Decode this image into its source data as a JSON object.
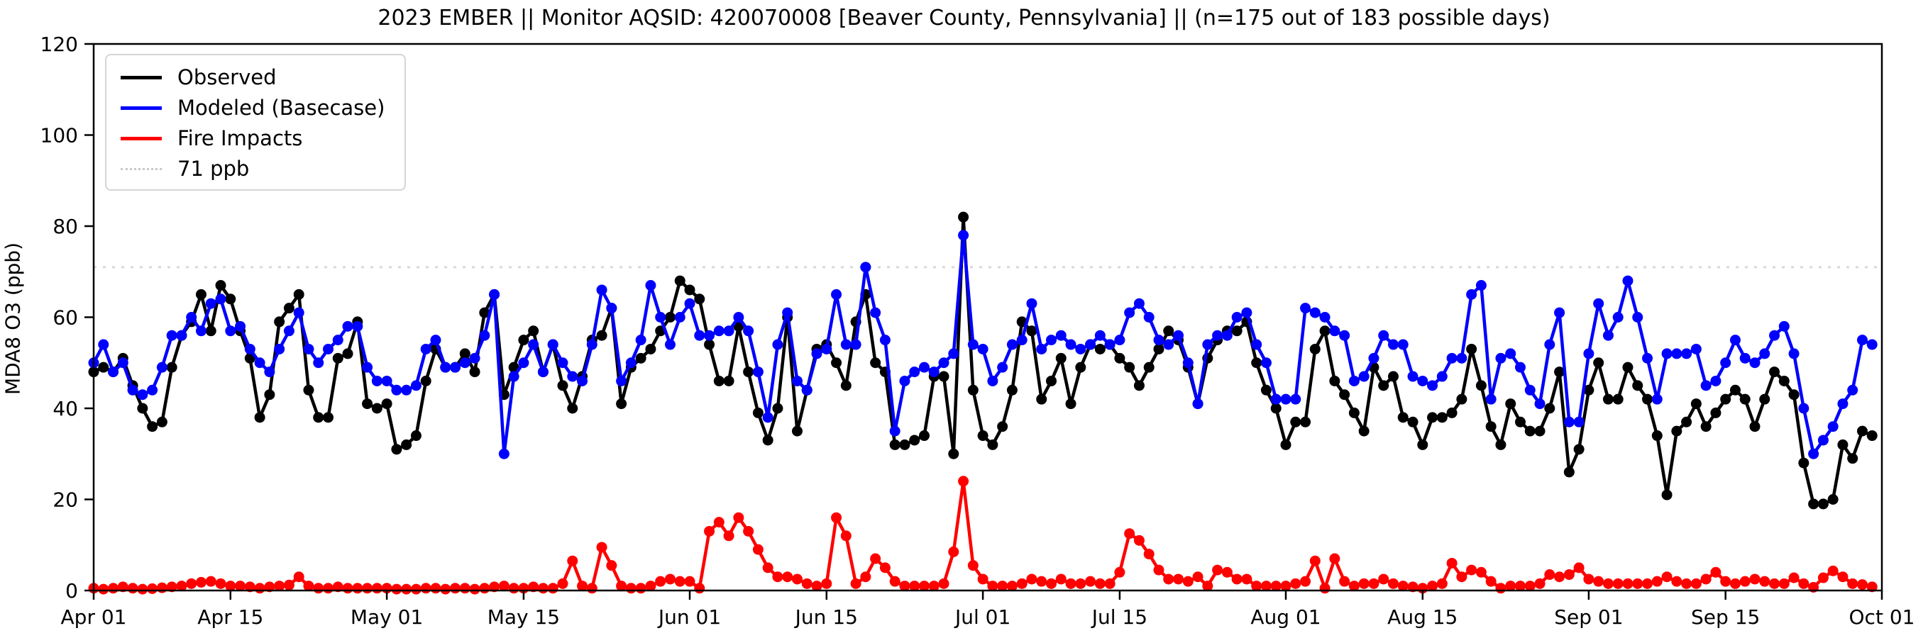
{
  "title": "2023 EMBER || Monitor AQSID: 420070008 [Beaver County, Pennsylvania] || (n=175 out of 183 possible days)",
  "axes": {
    "ylabel": "MDA8 O3 (ppb)",
    "y_ticks": [
      0,
      20,
      40,
      60,
      80,
      100,
      120
    ],
    "x_ticks": [
      {
        "label": "Apr 01",
        "day": 0
      },
      {
        "label": "Apr 15",
        "day": 14
      },
      {
        "label": "May 01",
        "day": 30
      },
      {
        "label": "May 15",
        "day": 44
      },
      {
        "label": "Jun 01",
        "day": 61
      },
      {
        "label": "Jun 15",
        "day": 75
      },
      {
        "label": "Jul 01",
        "day": 91
      },
      {
        "label": "Jul 15",
        "day": 105
      },
      {
        "label": "Aug 01",
        "day": 122
      },
      {
        "label": "Aug 15",
        "day": 136
      },
      {
        "label": "Sep 01",
        "day": 153
      },
      {
        "label": "Sep 15",
        "day": 167
      },
      {
        "label": "Oct 01",
        "day": 183
      }
    ]
  },
  "legend": {
    "items": [
      {
        "label": "Observed",
        "color": "#000000",
        "style": "solid"
      },
      {
        "label": "Modeled (Basecase)",
        "color": "#0000ff",
        "style": "solid"
      },
      {
        "label": "Fire Impacts",
        "color": "#ff0000",
        "style": "solid"
      },
      {
        "label": "71 ppb",
        "color": "#d9d9d9",
        "style": "dotted"
      }
    ]
  },
  "chart_data": {
    "type": "line",
    "title": "2023 EMBER || Monitor AQSID: 420070008 [Beaver County, Pennsylvania] || (n=175 out of 183 possible days)",
    "xlabel": "",
    "ylabel": "MDA8 O3 (ppb)",
    "ylim": [
      0,
      120
    ],
    "xlim_days": [
      0,
      183
    ],
    "x_unit": "days since Apr 01 2023 (daily values, Apr 01 - Sep 30)",
    "grid": false,
    "legend_position": "upper left",
    "threshold_line": {
      "value": 71,
      "label": "71 ppb",
      "color": "#d9d9d9",
      "style": "dotted"
    },
    "series": [
      {
        "name": "Observed",
        "color": "#000000",
        "values": [
          48,
          49,
          48,
          51,
          45,
          40,
          36,
          37,
          49,
          56,
          59,
          65,
          57,
          67,
          64,
          57,
          51,
          38,
          43,
          59,
          62,
          65,
          44,
          38,
          38,
          51,
          52,
          59,
          41,
          40,
          41,
          31,
          32,
          34,
          46,
          53,
          49,
          49,
          52,
          48,
          61,
          65,
          43,
          49,
          55,
          57,
          48,
          54,
          45,
          40,
          47,
          55,
          56,
          62,
          41,
          49,
          51,
          53,
          57,
          60,
          68,
          66,
          64,
          54,
          46,
          46,
          58,
          48,
          39,
          33,
          40,
          60,
          35,
          44,
          53,
          54,
          50,
          45,
          59,
          65,
          50,
          48,
          32,
          32,
          33,
          34,
          47,
          47,
          30,
          82,
          44,
          34,
          32,
          36,
          44,
          59,
          57,
          42,
          46,
          51,
          41,
          49,
          54,
          53,
          54,
          51,
          49,
          45,
          49,
          53,
          57,
          55,
          49,
          41,
          51,
          55,
          57,
          57,
          59,
          50,
          44,
          40,
          32,
          37,
          37,
          53,
          57,
          46,
          43,
          39,
          35,
          49,
          45,
          47,
          38,
          37,
          32,
          38,
          38,
          39,
          42,
          53,
          45,
          36,
          32,
          41,
          37,
          35,
          35,
          40,
          48,
          26,
          31,
          44,
          50,
          42,
          42,
          49,
          45,
          42,
          34,
          21,
          35,
          37,
          41,
          36,
          39,
          42,
          44,
          42,
          36,
          42,
          48,
          46,
          43,
          28,
          19,
          19,
          20,
          32,
          29,
          35,
          34
        ]
      },
      {
        "name": "Modeled (Basecase)",
        "color": "#0000ff",
        "values": [
          50,
          54,
          48,
          50,
          44,
          43,
          44,
          49,
          56,
          56,
          60,
          57,
          63,
          64,
          57,
          58,
          53,
          50,
          48,
          53,
          57,
          61,
          53,
          50,
          53,
          55,
          58,
          58,
          49,
          46,
          46,
          44,
          44,
          45,
          53,
          55,
          49,
          49,
          50,
          51,
          56,
          65,
          30,
          47,
          50,
          54,
          48,
          54,
          50,
          47,
          46,
          54,
          66,
          62,
          46,
          50,
          55,
          67,
          60,
          54,
          60,
          63,
          56,
          56,
          57,
          57,
          60,
          57,
          48,
          38,
          54,
          61,
          46,
          44,
          52,
          53,
          65,
          54,
          54,
          71,
          61,
          55,
          35,
          46,
          48,
          49,
          48,
          50,
          52,
          78,
          54,
          53,
          46,
          49,
          54,
          55,
          63,
          53,
          55,
          56,
          54,
          53,
          54,
          56,
          54,
          55,
          61,
          63,
          60,
          55,
          54,
          56,
          50,
          41,
          54,
          56,
          56,
          60,
          61,
          54,
          50,
          42,
          42,
          42,
          62,
          61,
          60,
          57,
          56,
          46,
          47,
          51,
          56,
          54,
          54,
          47,
          46,
          45,
          47,
          51,
          51,
          65,
          67,
          42,
          51,
          52,
          49,
          44,
          41,
          54,
          61,
          37,
          37,
          52,
          63,
          56,
          60,
          68,
          60,
          51,
          42,
          52,
          52,
          52,
          53,
          45,
          46,
          50,
          55,
          51,
          50,
          52,
          56,
          58,
          52,
          40,
          30,
          33,
          36,
          41,
          44,
          55,
          54
        ]
      },
      {
        "name": "Fire Impacts",
        "color": "#ff0000",
        "values": [
          0.5,
          0.3,
          0.5,
          0.8,
          0.5,
          0.3,
          0.4,
          0.6,
          0.8,
          1,
          1.5,
          1.8,
          2,
          1.5,
          1,
          1,
          0.8,
          0.5,
          0.8,
          1,
          1.2,
          3,
          1,
          0.5,
          0.5,
          0.8,
          0.5,
          0.5,
          0.5,
          0.5,
          0.5,
          0.3,
          0.3,
          0.3,
          0.5,
          0.5,
          0.3,
          0.5,
          0.5,
          0.3,
          0.5,
          0.8,
          1,
          0.5,
          0.5,
          0.8,
          0.5,
          0.5,
          1.5,
          6.5,
          1,
          0.5,
          9.5,
          5.5,
          1,
          0.5,
          0.5,
          1,
          2,
          2.5,
          2,
          2,
          0.5,
          13,
          15,
          12,
          16,
          13,
          9,
          5,
          3,
          3,
          2.5,
          1.5,
          1,
          1.5,
          16,
          12,
          1.5,
          3,
          7,
          5,
          2,
          1,
          1,
          1,
          1,
          1.5,
          8.5,
          24,
          5.5,
          2.5,
          1,
          1,
          1,
          1.5,
          2.5,
          2,
          1.5,
          2.5,
          1.5,
          1.5,
          2,
          1.5,
          1.5,
          4,
          12.5,
          11,
          8,
          4.5,
          2.5,
          2.5,
          2,
          3,
          1,
          4.5,
          4,
          2.5,
          2.5,
          1,
          1,
          1,
          1,
          1.5,
          2,
          6.5,
          0.5,
          7,
          2,
          1,
          1.5,
          1.5,
          2.5,
          1.5,
          1,
          0.8,
          0.5,
          1,
          1.5,
          6,
          3,
          4.5,
          4,
          2,
          0.5,
          1,
          1,
          1,
          1.5,
          3.5,
          3,
          3.5,
          5,
          2.5,
          2,
          1.5,
          1.5,
          1.5,
          1.5,
          1.5,
          2,
          3,
          2,
          1.5,
          1.5,
          2.5,
          4,
          2,
          1.5,
          2,
          2.5,
          2,
          1.5,
          1.5,
          2.8,
          1.5,
          0.7,
          2.8,
          4.3,
          3,
          1.5,
          1.3,
          0.8
        ]
      }
    ]
  }
}
